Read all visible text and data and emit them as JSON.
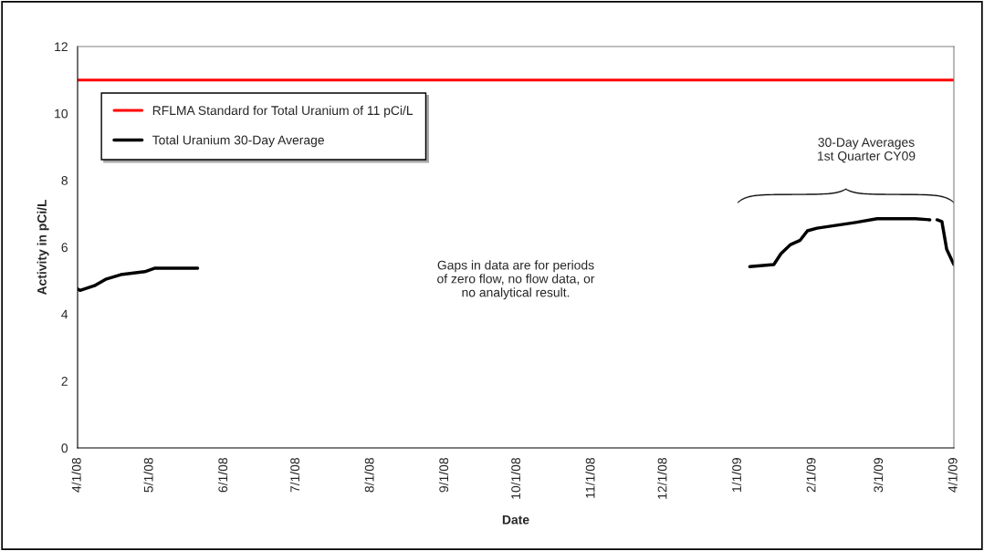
{
  "chart_data": {
    "type": "line",
    "xlabel": "Date",
    "ylabel": "Activity in pCi/L",
    "x": [
      "2008-04-01",
      "2008-04-02",
      "2008-04-08",
      "2008-04-13",
      "2008-04-19",
      "2008-04-29",
      "2008-05-03",
      "2008-05-21",
      "2008-06-01",
      "2009-01-06",
      "2009-01-16",
      "2009-01-19",
      "2009-01-23",
      "2009-01-27",
      "2009-01-30",
      "2009-02-03",
      "2009-02-19",
      "2009-02-28",
      "2009-03-16",
      "2009-03-22",
      "2009-03-23",
      "2009-03-25",
      "2009-03-27",
      "2009-03-29",
      "2009-04-01"
    ],
    "series": [
      {
        "name": "Total Uranium 30-Day Average",
        "color": "#000000",
        "values": [
          4.75,
          4.71,
          4.85,
          5.05,
          5.18,
          5.27,
          5.37,
          5.37,
          null,
          5.42,
          5.48,
          5.81,
          6.08,
          6.21,
          6.49,
          6.57,
          6.74,
          6.85,
          6.85,
          6.82,
          null,
          6.82,
          6.77,
          5.94,
          5.48
        ]
      }
    ],
    "ref_lines": [
      {
        "axis": "y",
        "value": 11,
        "label": "RFLMA Standard for Total Uranium of 11 pCi/L",
        "color": "#ff0000"
      }
    ],
    "annotations": [
      "30-Day Averages\n1st Quarter CY09",
      "Gaps in data are for periods\nof zero flow, no flow data, or\nno analytical result."
    ],
    "xlim": [
      "2008-04-01",
      "2009-04-01"
    ],
    "xticks": [
      {
        "value": "2008-04-01",
        "label": "4/1/08"
      },
      {
        "value": "2008-05-01",
        "label": "5/1/08"
      },
      {
        "value": "2008-06-01",
        "label": "6/1/08"
      },
      {
        "value": "2008-07-01",
        "label": "7/1/08"
      },
      {
        "value": "2008-08-01",
        "label": "8/1/08"
      },
      {
        "value": "2008-09-01",
        "label": "9/1/08"
      },
      {
        "value": "2008-10-01",
        "label": "10/1/08"
      },
      {
        "value": "2008-11-01",
        "label": "11/1/08"
      },
      {
        "value": "2008-12-01",
        "label": "12/1/08"
      },
      {
        "value": "2009-01-01",
        "label": "1/1/09"
      },
      {
        "value": "2009-02-01",
        "label": "2/1/09"
      },
      {
        "value": "2009-03-01",
        "label": "3/1/09"
      },
      {
        "value": "2009-04-01",
        "label": "4/1/09"
      }
    ],
    "ylim": [
      0,
      12
    ],
    "yticks": [
      0,
      2,
      4,
      6,
      8,
      10,
      12
    ],
    "grid": false,
    "legend": "top left",
    "marker": "none",
    "line_style": "solid"
  }
}
